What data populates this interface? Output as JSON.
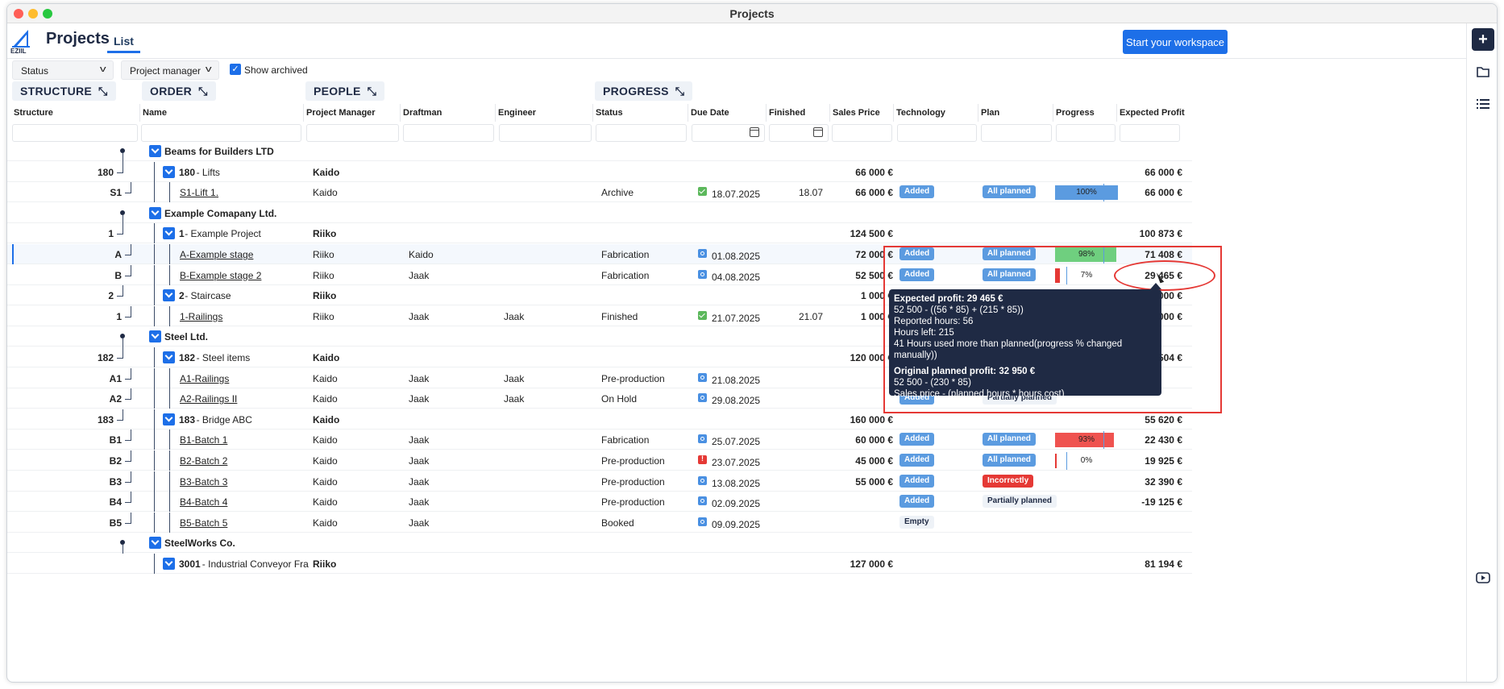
{
  "window": {
    "title": "Projects"
  },
  "header": {
    "logo_text": "EZIIL",
    "title": "Projects",
    "tab_list": "List",
    "start_button": "Start your workspace"
  },
  "filters": {
    "status": "Status",
    "project_manager": "Project manager",
    "show_archived": "Show archived",
    "show_archived_checked": true
  },
  "groups": {
    "structure": "STRUCTURE",
    "order": "ORDER",
    "people": "PEOPLE",
    "progress": "PROGRESS"
  },
  "columns": {
    "structure": "Structure",
    "name": "Name",
    "project_manager": "Project Manager",
    "draftman": "Draftman",
    "engineer": "Engineer",
    "status": "Status",
    "due_date": "Due Date",
    "finished": "Finished",
    "sales_price": "Sales Price",
    "technology": "Technology",
    "plan": "Plan",
    "progress": "Progress",
    "expected_profit": "Expected Profit"
  },
  "rows": [
    {
      "level": 0,
      "code": "",
      "name": "Beams for Builders LTD"
    },
    {
      "level": 1,
      "code": "180",
      "num": "180",
      "name": " - Lifts",
      "pm": "Kaido",
      "sales": "66 000 €",
      "profit": "66 000 €"
    },
    {
      "level": 2,
      "code": "S1",
      "name": "S1-Lift 1.",
      "pm": "Kaido",
      "status": "Archive",
      "due_icon": "ok",
      "due": "18.07.2025",
      "finished": "18.07",
      "sales": "66 000 €",
      "tech": "Added",
      "plan": "All planned",
      "plan_style": "blue",
      "progress": 100,
      "progress_label": "100%",
      "progress_color": "#5b9be0",
      "profit": "66 000 €",
      "profit_color": "green"
    },
    {
      "level": 0,
      "code": "",
      "name": "Example Comapany Ltd."
    },
    {
      "level": 1,
      "code": "1",
      "num": "1",
      "name": " - Example Project",
      "pm": "Riiko",
      "sales": "124 500 €",
      "profit": "100 873 €"
    },
    {
      "level": 2,
      "code": "A",
      "name": "A-Example stage",
      "pm": "Riiko",
      "draft": "Kaido",
      "status": "Fabrication",
      "due_icon": "info",
      "due": "01.08.2025",
      "sales": "72 000 €",
      "tech": "Added",
      "plan": "All planned",
      "plan_style": "blue",
      "progress": 98,
      "progress_label": "98%",
      "progress_color": "#6fcf7f",
      "profit": "71 408 €",
      "profit_color": "green",
      "highlight": true
    },
    {
      "level": 2,
      "code": "B",
      "name": "B-Example stage 2",
      "pm": "Riiko",
      "draft": "Jaak",
      "status": "Fabrication",
      "due_icon": "info",
      "due": "04.08.2025",
      "sales": "52 500 €",
      "tech": "Added",
      "plan": "All planned",
      "plan_style": "blue",
      "progress": 7,
      "progress_label": "7%",
      "progress_color": "#e53935",
      "profit": "29 465 €",
      "profit_color": "red"
    },
    {
      "level": 1,
      "code": "2",
      "num": "2",
      "name": " - Staircase",
      "pm": "Riiko",
      "sales": "1 000 €",
      "profit": "1 000 €"
    },
    {
      "level": 2,
      "code": "1",
      "name": "1-Railings",
      "pm": "Riiko",
      "draft": "Jaak",
      "eng": "Jaak",
      "status": "Finished",
      "due_icon": "ok",
      "due": "21.07.2025",
      "finished": "21.07",
      "sales": "1 000 €",
      "profit": "1 000 €",
      "profit_color": "green"
    },
    {
      "level": 0,
      "code": "",
      "name": "Steel Ltd."
    },
    {
      "level": 1,
      "code": "182",
      "num": "182",
      "name": " - Steel items",
      "pm": "Kaido",
      "sales": "120 000 €",
      "profit": "504 €"
    },
    {
      "level": 2,
      "code": "A1",
      "name": "A1-Railings",
      "pm": "Kaido",
      "draft": "Jaak",
      "eng": "Jaak",
      "status": "Pre-production",
      "due_icon": "info",
      "due": "21.08.2025"
    },
    {
      "level": 2,
      "code": "A2",
      "name": "A2-Railings II",
      "pm": "Kaido",
      "draft": "Jaak",
      "eng": "Jaak",
      "status": "On Hold",
      "due_icon": "info",
      "due": "29.08.2025",
      "tech": "Added",
      "plan": "Partially planned",
      "plan_style": "gray"
    },
    {
      "level": 1,
      "code": "183",
      "num": "183",
      "name": " - Bridge ABC",
      "pm": "Kaido",
      "sales": "160 000 €",
      "profit": "55 620 €"
    },
    {
      "level": 2,
      "code": "B1",
      "name": "B1-Batch 1",
      "pm": "Kaido",
      "draft": "Jaak",
      "status": "Fabrication",
      "due_icon": "info",
      "due": "25.07.2025",
      "sales": "60 000 €",
      "tech": "Added",
      "plan": "All planned",
      "plan_style": "blue",
      "progress": 93,
      "progress_label": "93%",
      "progress_color": "#ef5350",
      "profit": "22 430 €",
      "profit_color": "red"
    },
    {
      "level": 2,
      "code": "B2",
      "name": "B2-Batch 2",
      "pm": "Kaido",
      "draft": "Jaak",
      "status": "Pre-production",
      "due_icon": "warn",
      "due": "23.07.2025",
      "sales": "45 000 €",
      "tech": "Added",
      "plan": "All planned",
      "plan_style": "blue",
      "progress": 0,
      "progress_label": "0%",
      "progress_color": "#e53935",
      "profit": "19 925 €"
    },
    {
      "level": 2,
      "code": "B3",
      "name": "B3-Batch 3",
      "pm": "Kaido",
      "draft": "Jaak",
      "status": "Pre-production",
      "due_icon": "info",
      "due": "13.08.2025",
      "sales": "55 000 €",
      "tech": "Added",
      "plan": "Incorrectly",
      "plan_style": "red",
      "profit": "32 390 €"
    },
    {
      "level": 2,
      "code": "B4",
      "name": "B4-Batch 4",
      "pm": "Kaido",
      "draft": "Jaak",
      "status": "Pre-production",
      "due_icon": "info",
      "due": "02.09.2025",
      "tech": "Added",
      "plan": "Partially planned",
      "plan_style": "gray",
      "profit": "-19 125 €"
    },
    {
      "level": 2,
      "code": "B5",
      "name": "B5-Batch 5",
      "pm": "Kaido",
      "draft": "Jaak",
      "status": "Booked",
      "due_icon": "info",
      "due": "09.09.2025",
      "tech": "Empty",
      "tech_style": "gray"
    },
    {
      "level": 0,
      "code": "",
      "name": "SteelWorks Co."
    },
    {
      "level": 1,
      "code": "",
      "num": "3001",
      "name": " - Industrial Conveyor Fra",
      "pm": "Riiko",
      "sales": "127 000 €",
      "profit": "81 194 €"
    }
  ],
  "tooltip": {
    "line1": "Expected profit: 29 465 €",
    "line2": "52 500 - ((56 * 85) + (215 * 85))",
    "line3": "Reported hours: 56",
    "line4": "Hours left: 215",
    "line5": "41 Hours used more than planned(progress % changed manually))",
    "line6": "Original planned profit: 32 950 €",
    "line7": "52 500 - (230 * 85)",
    "line8": "Sales price - (planned hours * hours cost)"
  }
}
